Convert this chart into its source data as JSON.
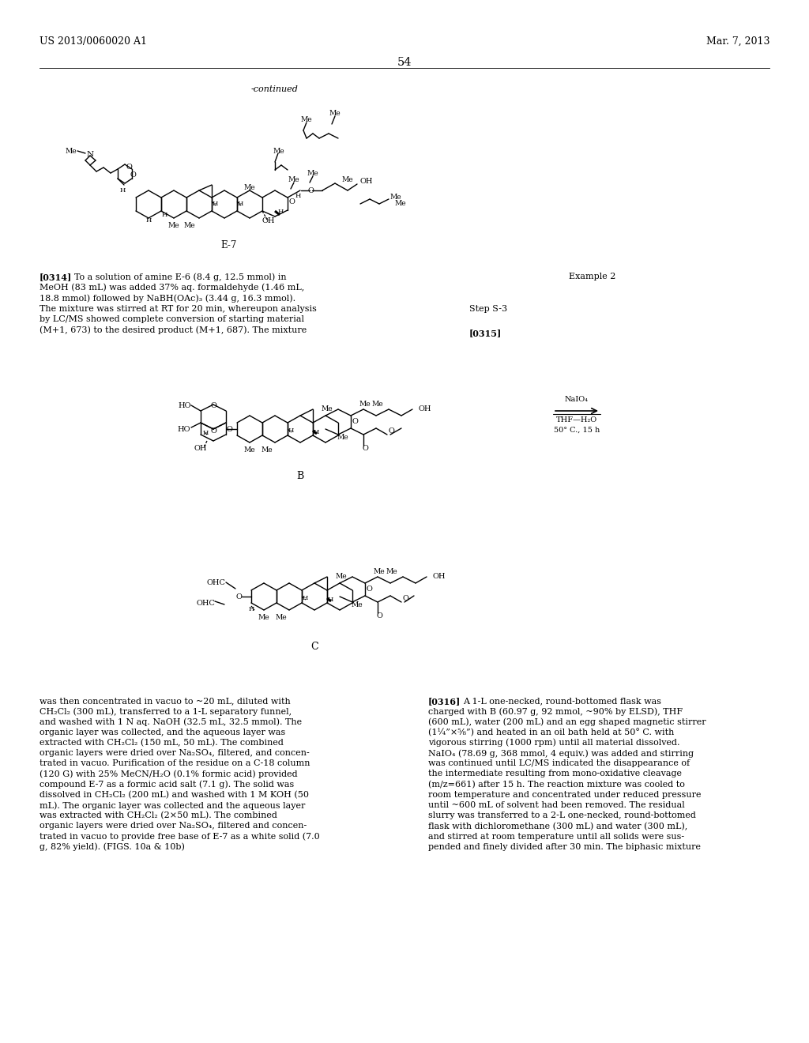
{
  "page_number": "54",
  "patent_number": "US 2013/0060020 A1",
  "patent_date": "Mar. 7, 2013",
  "continued_label": "-continued",
  "background_color": "#ffffff",
  "text_color": "#000000",
  "font_size_body": 8.0,
  "font_size_header": 9.0,
  "font_size_page_num": 10.5,
  "lines_0314": [
    "[0314]   To a solution of amine E-6 (8.4 g, 12.5 mmol) in",
    "MeOH (83 mL) was added 37% aq. formaldehyde (1.46 mL,",
    "18.8 mmol) followed by NaBH(OAc)₃ (3.44 g, 16.3 mmol).",
    "The mixture was stirred at RT for 20 min, whereupon analysis",
    "by LC/MS showed complete conversion of starting material",
    "(M+1, 673) to the desired product (M+1, 687). The mixture"
  ],
  "lines_left_bottom": [
    "was then concentrated in vacuo to ~20 mL, diluted with",
    "CH₂Cl₂ (300 mL), transferred to a 1-L separatory funnel,",
    "and washed with 1 N aq. NaOH (32.5 mL, 32.5 mmol). The",
    "organic layer was collected, and the aqueous layer was",
    "extracted with CH₂Cl₂ (150 mL, 50 mL). The combined",
    "organic layers were dried over Na₂SO₄, filtered, and concen-",
    "trated in vacuo. Purification of the residue on a C-18 column",
    "(120 G) with 25% MeCN/H₂O (0.1% formic acid) provided",
    "compound E-7 as a formic acid salt (7.1 g). The solid was",
    "dissolved in CH₂Cl₂ (200 mL) and washed with 1 M KOH (50",
    "mL). The organic layer was collected and the aqueous layer",
    "was extracted with CH₂Cl₂ (2×50 mL). The combined",
    "organic layers were dried over Na₂SO₄, filtered and concen-",
    "trated in vacuo to provide free base of E-7 as a white solid (7.0",
    "g, 82% yield). (FIGS. 10a & 10b)"
  ],
  "lines_right_bottom": [
    "[0316]   A 1-L one-necked, round-bottomed flask was",
    "charged with B (60.97 g, 92 mmol, ~90% by ELSD), THF",
    "(600 mL), water (200 mL) and an egg shaped magnetic stirrer",
    "(1¼”×⅝”) and heated in an oil bath held at 50° C. with",
    "vigorous stirring (1000 rpm) until all material dissolved.",
    "NaIO₄ (78.69 g, 368 mmol, 4 equiv.) was added and stirring",
    "was continued until LC/MS indicated the disappearance of",
    "the intermediate resulting from mono-oxidative cleavage",
    "(m/z=661) after 15 h. The reaction mixture was cooled to",
    "room temperature and concentrated under reduced pressure",
    "until ~600 mL of solvent had been removed. The residual",
    "slurry was transferred to a 2-L one-necked, round-bottomed",
    "flask with dichloromethane (300 mL) and water (300 mL),",
    "and stirred at room temperature until all solids were sus-",
    "pended and finely divided after 30 min. The biphasic mixture"
  ]
}
